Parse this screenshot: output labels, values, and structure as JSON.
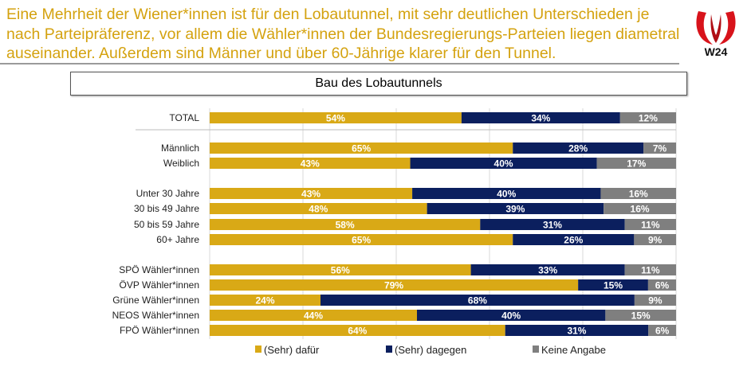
{
  "headline": "Eine Mehrheit der Wiener*innen ist für den Lobautunnel, mit sehr deutlichen Unterschieden je nach Parteipräferenz, vor allem die Wähler*innen der Bundesregierungs-Parteien liegen diametral auseinander. Außerdem sind Männer und über 60-Jährige klarer für den Tunnel.",
  "logo": {
    "text": "W24"
  },
  "chart_data": {
    "type": "bar",
    "orientation": "horizontal",
    "stacked": true,
    "title": "Bau des Lobautunnels",
    "categories": [
      "TOTAL",
      "Männlich",
      "Weiblich",
      "Unter 30 Jahre",
      "30 bis 49 Jahre",
      "50 bis 59 Jahre",
      "60+ Jahre",
      "SPÖ Wähler*innen",
      "ÖVP Wähler*innen",
      "Grüne Wähler*innen",
      "NEOS Wähler*innen",
      "FPÖ Wähler*innen"
    ],
    "groups": [
      [
        0
      ],
      [
        1,
        2
      ],
      [
        3,
        4,
        5,
        6
      ],
      [
        7,
        8,
        9,
        10,
        11
      ]
    ],
    "series": [
      {
        "name": "(Sehr) dafür",
        "color": "#D9A916",
        "values": [
          54,
          65,
          43,
          43,
          48,
          58,
          65,
          56,
          79,
          24,
          44,
          64
        ]
      },
      {
        "name": "(Sehr) dagegen",
        "color": "#0B1F5E",
        "values": [
          34,
          28,
          40,
          40,
          39,
          31,
          26,
          33,
          15,
          68,
          40,
          31
        ]
      },
      {
        "name": "Keine Angabe",
        "color": "#7F7F7F",
        "values": [
          12,
          7,
          17,
          16,
          16,
          11,
          9,
          11,
          6,
          9,
          15,
          6
        ]
      }
    ],
    "value_format": "{v}%",
    "xlim": [
      0,
      100
    ],
    "grid": true,
    "legend_position": "bottom"
  }
}
